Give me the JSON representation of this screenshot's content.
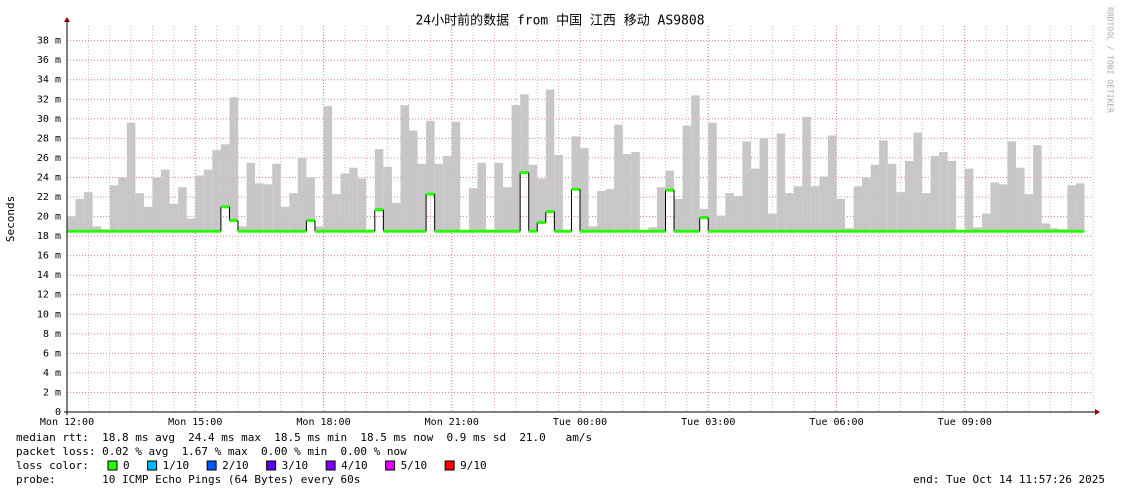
{
  "chart_data": {
    "type": "smoke",
    "title": "24小时前的数据 from 中国 江西 移动 AS9808",
    "y_label": "Seconds",
    "side_text": "RRDTOOL / TOBI OETIKER",
    "ylim": [
      0,
      39.5
    ],
    "yticks": [
      {
        "value": 0,
        "label": "0"
      },
      {
        "value": 2,
        "label": "2 m"
      },
      {
        "value": 4,
        "label": "4 m"
      },
      {
        "value": 6,
        "label": "6 m"
      },
      {
        "value": 8,
        "label": "8 m"
      },
      {
        "value": 10,
        "label": "10 m"
      },
      {
        "value": 12,
        "label": "12 m"
      },
      {
        "value": 14,
        "label": "14 m"
      },
      {
        "value": 16,
        "label": "16 m"
      },
      {
        "value": 18,
        "label": "18 m"
      },
      {
        "value": 20,
        "label": "20 m"
      },
      {
        "value": 22,
        "label": "22 m"
      },
      {
        "value": 24,
        "label": "24 m"
      },
      {
        "value": 26,
        "label": "26 m"
      },
      {
        "value": 28,
        "label": "28 m"
      },
      {
        "value": 30,
        "label": "30 m"
      },
      {
        "value": 32,
        "label": "32 m"
      },
      {
        "value": 34,
        "label": "34 m"
      },
      {
        "value": 36,
        "label": "36 m"
      },
      {
        "value": 38,
        "label": "38 m"
      }
    ],
    "xlim": [
      0,
      24
    ],
    "xticks": [
      {
        "value": 0,
        "label": "Mon 12:00"
      },
      {
        "value": 3,
        "label": "Mon 15:00"
      },
      {
        "value": 6,
        "label": "Mon 18:00"
      },
      {
        "value": 9,
        "label": "Mon 21:00"
      },
      {
        "value": 12,
        "label": "Tue 00:00"
      },
      {
        "value": 15,
        "label": "Tue 03:00"
      },
      {
        "value": 18,
        "label": "Tue 06:00"
      },
      {
        "value": 21,
        "label": "Tue 09:00"
      }
    ],
    "grid": true,
    "series": [
      {
        "name": "smoke",
        "color": "#c8c6c8",
        "values": [
          20,
          21.8,
          22.5,
          19,
          18.7,
          23.2,
          24,
          29.6,
          22.4,
          21,
          24,
          24.8,
          21.3,
          23,
          19.8,
          24.2,
          24.8,
          26.8,
          27.4,
          32.2,
          19,
          25.5,
          23.4,
          23.3,
          25.4,
          21,
          22.4,
          26,
          24,
          19,
          31.3,
          22.3,
          24.4,
          25,
          23.9,
          18.5,
          26.9,
          25.1,
          21.4,
          31.4,
          28.8,
          25.4,
          29.8,
          25.4,
          26.2,
          29.7,
          18.5,
          22.9,
          25.5,
          18.5,
          25.5,
          23,
          31.4,
          32.5,
          25.3,
          23.9,
          33,
          26.3,
          18.6,
          28.2,
          27,
          19,
          22.6,
          22.8,
          29.4,
          26.4,
          26.6,
          18.6,
          18.9,
          23,
          24.7,
          21.8,
          29.3,
          32.4,
          20.8,
          29.6,
          20.1,
          22.4,
          22.1,
          27.7,
          24.9,
          28,
          20.3,
          28.5,
          22.4,
          23.1,
          30.2,
          23.1,
          24.1,
          28.3,
          21.8,
          18.8,
          23.1,
          24,
          25.3,
          27.8,
          25.4,
          22.5,
          25.7,
          28.6,
          22.4,
          26.2,
          26.6,
          25.7,
          18.5,
          24.9,
          18.9,
          20.3,
          23.5,
          23.3,
          27.7,
          25,
          22.3,
          27.3,
          19.3,
          18.8,
          18.7,
          23.2,
          23.4
        ]
      },
      {
        "name": "median",
        "color": "#26ff00",
        "values": [
          18.5,
          18.5,
          18.5,
          18.5,
          18.5,
          18.5,
          18.5,
          18.5,
          18.5,
          18.5,
          18.5,
          18.5,
          18.5,
          18.5,
          18.5,
          18.5,
          18.5,
          18.5,
          21,
          19.6,
          18.5,
          18.5,
          18.5,
          18.5,
          18.5,
          18.5,
          18.5,
          18.5,
          19.6,
          18.5,
          18.5,
          18.5,
          18.5,
          18.5,
          18.5,
          18.5,
          20.7,
          18.5,
          18.5,
          18.5,
          18.5,
          18.5,
          22.3,
          18.5,
          18.5,
          18.5,
          18.5,
          18.5,
          18.5,
          18.5,
          18.5,
          18.5,
          18.5,
          24.5,
          18.5,
          19.4,
          20.5,
          18.5,
          18.5,
          22.8,
          18.5,
          18.5,
          18.5,
          18.5,
          18.5,
          18.5,
          18.5,
          18.5,
          18.5,
          18.5,
          22.7,
          18.5,
          18.5,
          18.5,
          19.9,
          18.5,
          18.5,
          18.5,
          18.5,
          18.5,
          18.5,
          18.5,
          18.5,
          18.5,
          18.5,
          18.5,
          18.5,
          18.5,
          18.5,
          18.5,
          18.5,
          18.5,
          18.5,
          18.5,
          18.5,
          18.5,
          18.5,
          18.5,
          18.5,
          18.5,
          18.5,
          18.5,
          18.5,
          18.5,
          18.5,
          18.5,
          18.5,
          18.5,
          18.5,
          18.5,
          18.5,
          18.5,
          18.5,
          18.5,
          18.5,
          18.5,
          18.5,
          18.5,
          18.5
        ]
      }
    ],
    "stats": [
      "median rtt:  18.8 ms avg  24.4 ms max  18.5 ms min  18.5 ms now  0.9 ms sd  21.0   am/s",
      "packet loss: 0.02 % avg  1.67 % max  0.00 % min  0.00 % now"
    ],
    "loss_title": "loss color:",
    "loss_colors": [
      {
        "name": "0",
        "color": "#26ff00"
      },
      {
        "name": "1/10",
        "color": "#00b8ff"
      },
      {
        "name": "2/10",
        "color": "#0059ff"
      },
      {
        "name": "3/10",
        "color": "#5e00ff"
      },
      {
        "name": "4/10",
        "color": "#7e00ff"
      },
      {
        "name": "5/10",
        "color": "#dd00ff"
      },
      {
        "name": "9/10",
        "color": "#ff0000"
      }
    ],
    "probe": "probe:       10 ICMP Echo Pings (64 Bytes) every 60s",
    "end": "end: Tue Oct 14 11:57:26 2025"
  }
}
